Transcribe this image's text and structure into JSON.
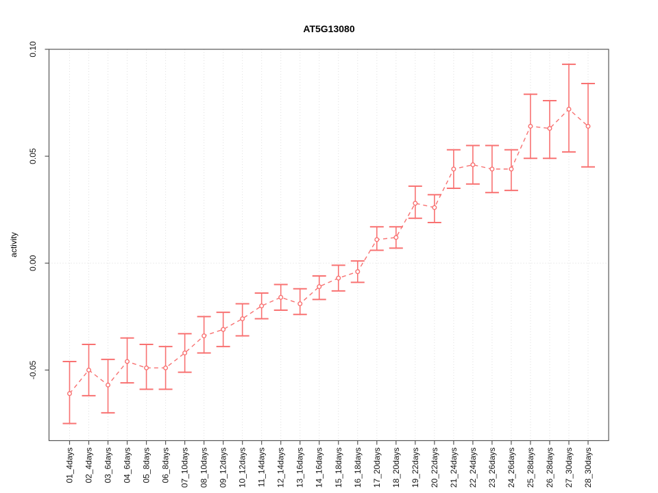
{
  "chart_data": {
    "type": "scatter",
    "title": "AT5G13080",
    "xlabel": "",
    "ylabel": "activity",
    "categories": [
      "01_4days",
      "02_4days",
      "03_6days",
      "04_6days",
      "05_8days",
      "06_8days",
      "07_10days",
      "08_10days",
      "09_12days",
      "10_12days",
      "11_14days",
      "12_14days",
      "13_16days",
      "14_16days",
      "15_18days",
      "16_18days",
      "17_20days",
      "18_20days",
      "19_22days",
      "20_22days",
      "21_24days",
      "22_24days",
      "23_26days",
      "24_26days",
      "25_28days",
      "26_28days",
      "27_30days",
      "28_30days"
    ],
    "series": [
      {
        "name": "AT5G13080 activity",
        "values": [
          -0.061,
          -0.05,
          -0.057,
          -0.046,
          -0.049,
          -0.049,
          -0.042,
          -0.034,
          -0.031,
          -0.026,
          -0.02,
          -0.016,
          -0.019,
          -0.011,
          -0.007,
          -0.004,
          0.011,
          0.012,
          0.028,
          0.026,
          0.044,
          0.046,
          0.044,
          0.044,
          0.064,
          0.063,
          0.072,
          0.064
        ],
        "error_low": [
          -0.075,
          -0.062,
          -0.07,
          -0.056,
          -0.059,
          -0.059,
          -0.051,
          -0.042,
          -0.039,
          -0.034,
          -0.026,
          -0.022,
          -0.024,
          -0.017,
          -0.013,
          -0.009,
          0.006,
          0.007,
          0.021,
          0.019,
          0.035,
          0.037,
          0.033,
          0.034,
          0.049,
          0.049,
          0.052,
          0.045
        ],
        "error_high": [
          -0.046,
          -0.038,
          -0.045,
          -0.035,
          -0.038,
          -0.039,
          -0.033,
          -0.025,
          -0.023,
          -0.019,
          -0.014,
          -0.01,
          -0.012,
          -0.006,
          -0.001,
          0.001,
          0.017,
          0.017,
          0.036,
          0.032,
          0.053,
          0.055,
          0.055,
          0.053,
          0.079,
          0.076,
          0.093,
          0.084
        ]
      }
    ],
    "ylim": [
      -0.083,
      0.1
    ],
    "yticks": [
      -0.05,
      0.0,
      0.05,
      0.1
    ],
    "ytick_labels": [
      "-0.05",
      "0.00",
      "0.05",
      "0.10"
    ],
    "grid": {
      "vertical_per_category": true,
      "horizontal_at_zero": true,
      "style": "dotted"
    },
    "legend_position": "none",
    "marker": "open-circle",
    "connector_line": "dashed",
    "colors": {
      "series": "#f87171",
      "grid": "#dedede",
      "zero_line": "#d8d8d8",
      "axis": "#555555",
      "text": "#111111"
    }
  }
}
